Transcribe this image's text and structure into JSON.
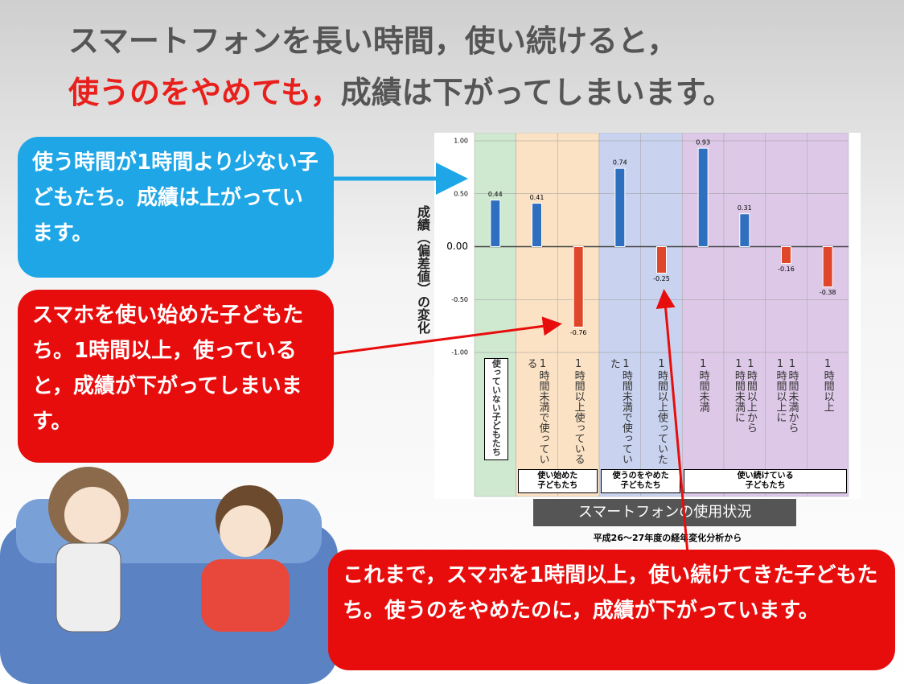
{
  "title": {
    "line1": "スマートフォンを長い時間，使い続けると，",
    "line2_red": "使うのをやめても，",
    "line2_rest": "成績は下がってしまいます。"
  },
  "callouts": {
    "blue": "使う時間が1時間より少ない子どもたち。成績は上がっています。",
    "red_start": "スマホを使い始めた子どもたち。1時間以上，使っていると，成績が下がってしまいます。",
    "red_stop": "これまで，スマホを1時間以上，使い続けてきた子どもたち。使うのをやめたのに，成績が下がっています。"
  },
  "chart_data": {
    "type": "bar",
    "y_label": "成績（偏差値）の変化",
    "x_label": "スマートフォンの使用状況",
    "note": "平成26〜27年度の経年変化分析から",
    "categories": [
      "使っていない子どもたち",
      "1時間未満で使っている",
      "1時間以上使っている",
      "1時間未満で使っていた",
      "1時間以上使っていた",
      "1時間未満",
      "1時間以上から\n1時間未満に",
      "1時間未満から\n1時間以上に",
      "1時間以上"
    ],
    "groups": [
      "使い始めた\n子どもたち",
      "使うのをやめた\n子どもたち",
      "使い続けている\n子どもたち"
    ],
    "values": [
      0.44,
      0.41,
      -0.76,
      0.74,
      -0.25,
      0.93,
      0.31,
      -0.16,
      -0.38
    ],
    "positive_color": "#2f6fbf",
    "negative_color": "#e0462a",
    "column_colors": [
      "#cfe8d0",
      "#fbe2c4",
      "#fbe2c4",
      "#c9d3ef",
      "#c9d3ef",
      "#ddc8e8",
      "#ddc8e8",
      "#ddc8e8",
      "#ddc8e8"
    ],
    "ylim": [
      -1,
      1
    ],
    "yticks": [
      {
        "value": 1,
        "label": "1.00"
      },
      {
        "value": 0.5,
        "label": "0.50"
      },
      {
        "value": 0,
        "label": "0.00"
      },
      {
        "value": -0.5,
        "label": "-0.50"
      },
      {
        "value": -1,
        "label": "-1.00"
      }
    ],
    "grid": true
  }
}
